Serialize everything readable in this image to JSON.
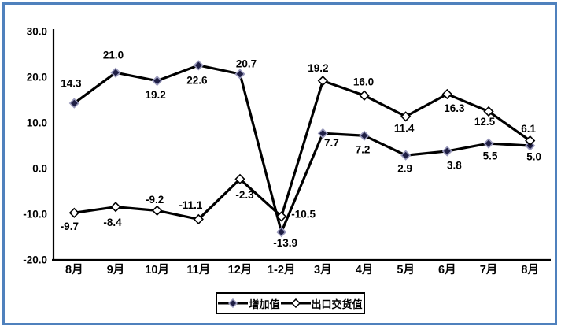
{
  "frame": {
    "border_color": "#4F81BD",
    "background": "#FFFFFF"
  },
  "chart_data": {
    "type": "line",
    "title": "",
    "xlabel": "",
    "ylabel": "",
    "grid": false,
    "legend_position": "bottom-center",
    "categories": [
      "8月",
      "9月",
      "10月",
      "11月",
      "12月",
      "1-2月",
      "3月",
      "4月",
      "5月",
      "6月",
      "7月",
      "8月"
    ],
    "y_axis": {
      "min": -20,
      "max": 30,
      "tick_values": [
        30,
        20,
        10,
        0,
        -10,
        -20
      ],
      "tick_labels": [
        "30.0",
        "20.0",
        "10.0",
        "0.0",
        "-10.0",
        "-20.0"
      ]
    },
    "series": [
      {
        "name": "增加值",
        "values": [
          14.3,
          21.0,
          19.2,
          22.6,
          20.7,
          -13.9,
          7.7,
          7.2,
          2.9,
          3.8,
          5.5,
          5.0
        ],
        "marker": "filled-diamond",
        "marker_fill": "#1F1F45",
        "marker_edge": "#9999BB",
        "line_color": "#000000",
        "label_offsets": [
          [
            -4,
            -25
          ],
          [
            -3,
            -22
          ],
          [
            -2,
            18
          ],
          [
            -2,
            19
          ],
          [
            8,
            -13
          ],
          [
            5,
            14
          ],
          [
            11,
            12
          ],
          [
            -2,
            18
          ],
          [
            -1,
            17
          ],
          [
            9,
            18
          ],
          [
            2,
            16
          ],
          [
            5,
            14
          ]
        ]
      },
      {
        "name": "出口交货值",
        "values": [
          -9.7,
          -8.4,
          -9.2,
          -11.1,
          -2.3,
          -10.5,
          19.2,
          16.0,
          11.4,
          16.3,
          12.5,
          6.1
        ],
        "marker": "open-diamond",
        "marker_fill": "#FFFFFF",
        "marker_edge": "#000000",
        "line_color": "#000000",
        "label_offsets": [
          [
            -6,
            17
          ],
          [
            -4,
            20
          ],
          [
            -3,
            -14
          ],
          [
            -10,
            -18
          ],
          [
            6,
            20
          ],
          [
            28,
            -3
          ],
          [
            -6,
            -16
          ],
          [
            -1,
            -17
          ],
          [
            -2,
            15
          ],
          [
            9,
            18
          ],
          [
            -5,
            13
          ],
          [
            -2,
            -15
          ]
        ]
      }
    ]
  }
}
